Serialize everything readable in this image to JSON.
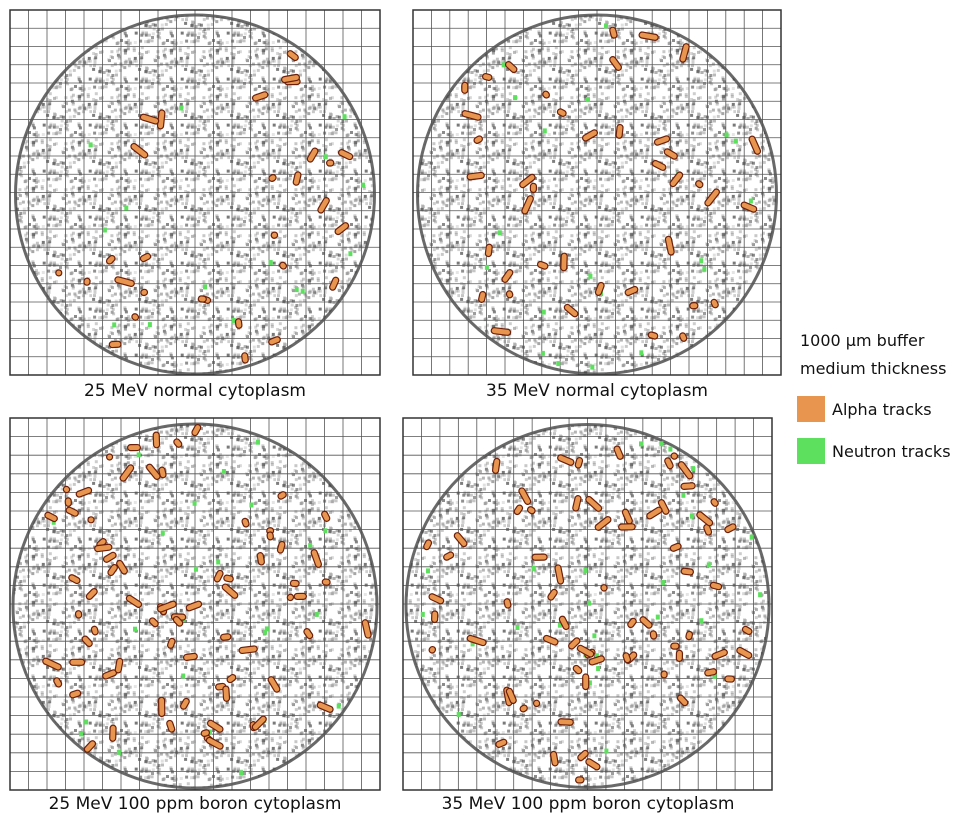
{
  "panels": [
    {
      "caption": "25 MeV normal cytoplasm"
    },
    {
      "caption": "35 MeV normal cytoplasm"
    },
    {
      "caption": "25 MeV 100 ppm boron cytoplasm"
    },
    {
      "caption": "35 MeV 100 ppm boron cytoplasm"
    }
  ],
  "legend": {
    "title_lines": [
      "1000 µm buffer",
      "medium thickness"
    ],
    "entries": [
      {
        "label": "Alpha tracks",
        "color": "#e8954f"
      },
      {
        "label": "Neutron tracks",
        "color": "#5de05d"
      }
    ]
  }
}
